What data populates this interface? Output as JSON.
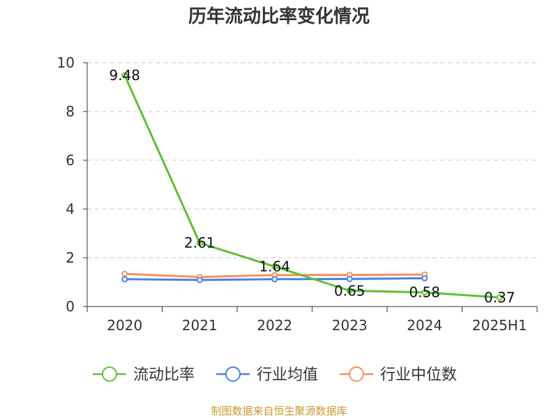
{
  "chart_data": {
    "type": "line",
    "title": "历年流动比率变化情况",
    "categories": [
      "2020",
      "2021",
      "2022",
      "2023",
      "2024",
      "2025H1"
    ],
    "ylim": [
      0,
      10
    ],
    "yticks": [
      "0",
      "2",
      "4",
      "6",
      "8",
      "10"
    ],
    "grid": true,
    "legend_position": "bottom",
    "series": [
      {
        "name": "流动比率",
        "color": "#5cc233",
        "values": [
          9.48,
          2.61,
          1.64,
          0.65,
          0.58,
          0.37
        ],
        "labels": [
          "9.48",
          "2.61",
          "1.64",
          "0.65",
          "0.58",
          "0.37"
        ]
      },
      {
        "name": "行业均值",
        "color": "#4f7fe0",
        "values": [
          1.12,
          1.09,
          1.12,
          1.13,
          1.16,
          null
        ]
      },
      {
        "name": "行业中位数",
        "color": "#f5915e",
        "values": [
          1.34,
          1.21,
          1.29,
          1.3,
          1.31,
          null
        ]
      }
    ]
  },
  "footer": {
    "source": "制图数据来自恒生聚源数据库",
    "color": "#c79a2e"
  }
}
